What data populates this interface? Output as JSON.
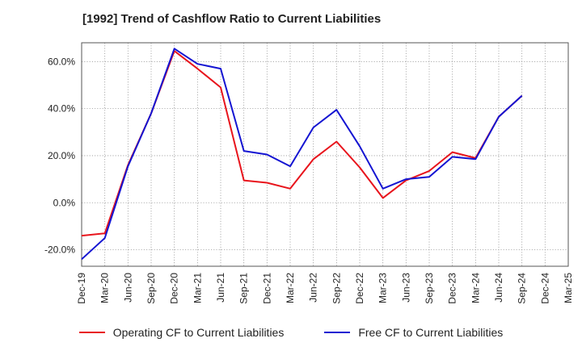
{
  "chart_data": {
    "type": "line",
    "title": "[1992]  Trend of Cashflow Ratio to Current Liabilities",
    "categories": [
      "Dec-19",
      "Mar-20",
      "Jun-20",
      "Sep-20",
      "Dec-20",
      "Mar-21",
      "Jun-21",
      "Sep-21",
      "Dec-21",
      "Mar-22",
      "Jun-22",
      "Sep-22",
      "Dec-22",
      "Mar-23",
      "Jun-23",
      "Sep-23",
      "Dec-23",
      "Mar-24",
      "Jun-24",
      "Sep-24",
      "Dec-24",
      "Mar-25"
    ],
    "x_tick_labels": [
      "Dec-19",
      "Mar-20",
      "Jun-20",
      "Sep-20",
      "Dec-20",
      "Mar-21",
      "Jun-21",
      "Sep-21",
      "Dec-21",
      "Mar-22",
      "Jun-22",
      "Sep-22",
      "Dec-22",
      "Mar-23",
      "Jun-23",
      "Sep-23",
      "Dec-23",
      "Mar-24",
      "Jun-24",
      "Sep-24",
      "Dec-24",
      "Mar-25"
    ],
    "y_tick_labels": [
      "-20.0%",
      "0.0%",
      "20.0%",
      "40.0%",
      "60.0%"
    ],
    "y_ticks": [
      -20,
      0,
      20,
      40,
      60
    ],
    "ylim": [
      -27,
      68
    ],
    "grid": true,
    "legend_position": "bottom",
    "series": [
      {
        "name": "Operating CF to Current Liabilities",
        "color": "#e8141c",
        "values": [
          -14.0,
          -13.0,
          16.0,
          38.0,
          64.5,
          57.0,
          49.0,
          9.5,
          8.5,
          6.0,
          18.5,
          26.0,
          15.0,
          2.0,
          9.5,
          13.5,
          21.5,
          19.0,
          36.5,
          45.5,
          null,
          null
        ]
      },
      {
        "name": "Free CF to Current Liabilities",
        "color": "#1414d2",
        "values": [
          -24.0,
          -15.0,
          15.5,
          38.0,
          65.5,
          59.0,
          57.0,
          22.0,
          20.5,
          15.5,
          32.0,
          39.5,
          24.0,
          6.0,
          10.0,
          11.0,
          19.5,
          18.5,
          36.5,
          45.5,
          null,
          null
        ]
      }
    ]
  }
}
